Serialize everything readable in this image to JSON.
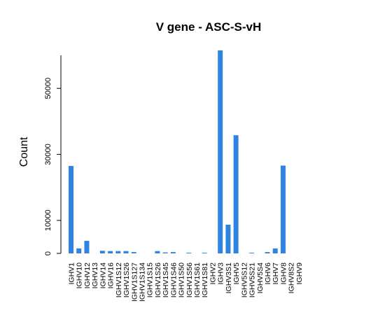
{
  "chart_data": {
    "type": "bar",
    "title": "V gene - ASC-S-vH",
    "xlabel": "",
    "ylabel": "Count",
    "ylim": [
      0,
      61500
    ],
    "yticks": [
      0,
      10000,
      30000,
      50000
    ],
    "bar_color": "#2f84e2",
    "grid": false,
    "legend": "none",
    "categories": [
      "IGHV1",
      "IGHV10",
      "IGHV12",
      "IGHV13",
      "IGHV14",
      "IGHV16",
      "IGHV1S12",
      "IGHV1S26",
      "IGHV1S127",
      "IGHV1S134",
      "IGHV1S15",
      "IGHV1S26",
      "IGHV1S45",
      "IGHV1S46",
      "IGHV1S50",
      "IGHV1S56",
      "IGHV1S61",
      "IGHV1S81",
      "IGHV2",
      "IGHV3",
      "IGHV3S1",
      "IGHV5",
      "IGHV5S12",
      "IGHV5S21",
      "IGHV5S4",
      "IGHV6",
      "IGHV7",
      "IGHV8",
      "IGHV8S2",
      "IGHV9"
    ],
    "values": [
      26500,
      1500,
      3800,
      0,
      800,
      700,
      700,
      700,
      400,
      0,
      0,
      700,
      300,
      400,
      0,
      200,
      0,
      200,
      0,
      61500,
      8700,
      35800,
      0,
      200,
      0,
      400,
      1500,
      26600,
      0,
      0
    ]
  }
}
